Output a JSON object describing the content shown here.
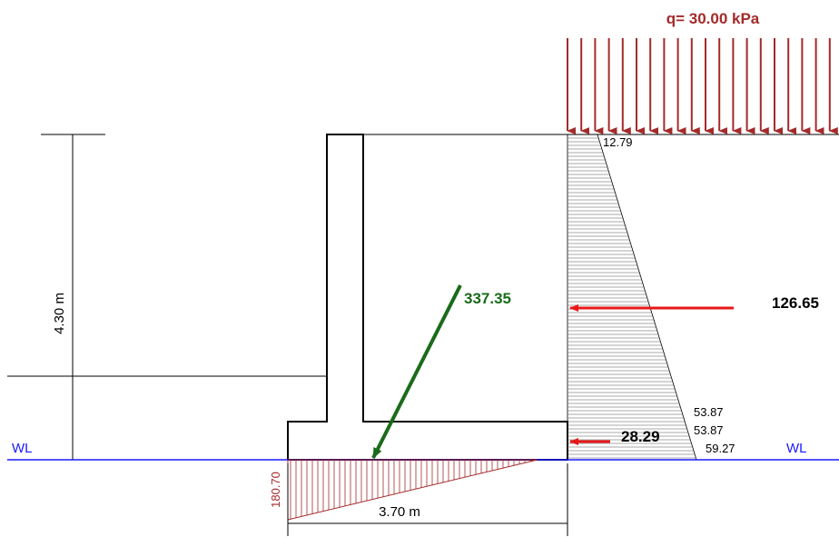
{
  "surcharge": {
    "label": "q= 30.00 kPa",
    "color": "#a52a2a"
  },
  "pressure_values": {
    "top": "12.79",
    "upper_mid": "53.87",
    "lower_mid": "53.87",
    "bottom": "59.27"
  },
  "forces": {
    "resultant": {
      "value": "337.35",
      "color": "#1a6b1a"
    },
    "earth_thrust": {
      "value": "126.65",
      "color": "#e81818"
    },
    "water_thrust": {
      "value": "28.29",
      "color": "#e81818"
    }
  },
  "dimensions": {
    "height": "4.30 m",
    "base_width": "3.70 m"
  },
  "water_level": {
    "left_label": "WL",
    "right_label": "WL",
    "color": "#1a1aff"
  },
  "base_pressure": {
    "max_value": "180.70",
    "color": "#a52a2a"
  }
}
